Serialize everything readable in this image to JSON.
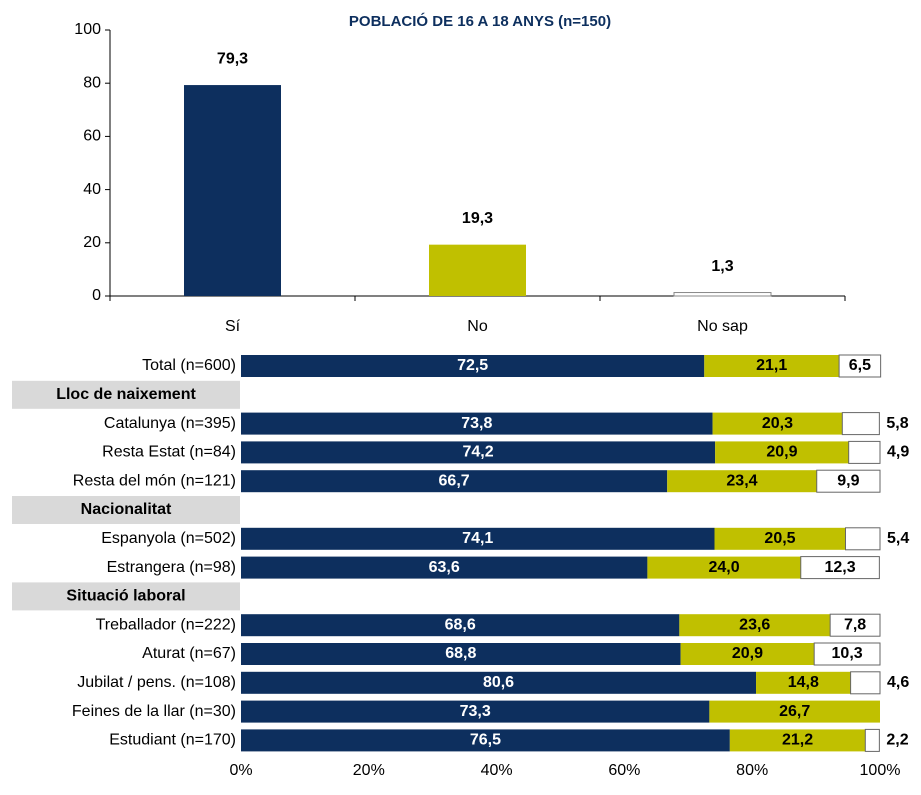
{
  "chart_data": [
    {
      "type": "bar",
      "title": "POBLACIÓ DE 16 A 18 ANYS (n=150)",
      "categories": [
        "Sí",
        "No",
        "No sap"
      ],
      "values": [
        79.3,
        19.3,
        1.3
      ],
      "value_labels": [
        "79,3",
        "19,3",
        "1,3"
      ],
      "colors": [
        "#0d2f5e",
        "#c0c000",
        "#ffffff"
      ],
      "ylim": [
        0,
        100
      ],
      "yticks": [
        0,
        20,
        40,
        60,
        80,
        100
      ]
    },
    {
      "type": "stacked_hbar",
      "categories": [
        "Total (n=600)",
        "Lloc de naixement",
        "Catalunya (n=395)",
        "Resta Estat (n=84)",
        "Resta del món (n=121)",
        "Nacionalitat",
        "Espanyola (n=502)",
        "Estrangera (n=98)",
        "Situació laboral",
        "Treballador (n=222)",
        "Aturat (n=67)",
        "Jubilat / pens. (n=108)",
        "Feines de la llar (n=30)",
        "Estudiant (n=170)"
      ],
      "series": [
        {
          "color": "#0d2f5e",
          "values": [
            72.5,
            null,
            73.8,
            74.2,
            66.7,
            null,
            74.1,
            63.6,
            null,
            68.6,
            68.8,
            80.6,
            73.3,
            76.5
          ],
          "value_labels": [
            "72,5",
            null,
            "73,8",
            "74,2",
            "66,7",
            null,
            "74,1",
            "63,6",
            null,
            "68,6",
            "68,8",
            "80,6",
            "73,3",
            "76,5"
          ]
        },
        {
          "color": "#c0c000",
          "values": [
            21.1,
            null,
            20.3,
            20.9,
            23.4,
            null,
            20.5,
            24.0,
            null,
            23.6,
            20.9,
            14.8,
            26.7,
            21.2
          ],
          "value_labels": [
            "21,1",
            null,
            "20,3",
            "20,9",
            "23,4",
            null,
            "20,5",
            "24,0",
            null,
            "23,6",
            "20,9",
            "14,8",
            "26,7",
            "21,2"
          ]
        },
        {
          "color": "#ffffff",
          "values": [
            6.5,
            null,
            5.8,
            4.9,
            9.9,
            null,
            5.4,
            12.3,
            null,
            7.8,
            10.3,
            4.6,
            null,
            2.2
          ],
          "value_labels": [
            "6,5",
            null,
            "5,8",
            "4,9",
            "9,9",
            null,
            "5,4",
            "12,3",
            null,
            "7,8",
            "10,3",
            "4,6",
            null,
            "2,2"
          ]
        }
      ],
      "xlim": [
        0,
        100
      ],
      "xticks": [
        {
          "value": 0,
          "label": "0%"
        },
        {
          "value": 20,
          "label": "20%"
        },
        {
          "value": 40,
          "label": "40%"
        },
        {
          "value": 60,
          "label": "60%"
        },
        {
          "value": 80,
          "label": "80%"
        },
        {
          "value": 100,
          "label": "100%"
        }
      ]
    }
  ]
}
